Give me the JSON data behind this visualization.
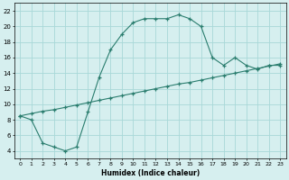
{
  "line1_x": [
    0,
    1,
    2,
    3,
    4,
    5,
    6,
    7,
    8,
    9,
    10,
    11,
    12,
    13,
    14,
    15,
    16,
    17,
    18,
    19,
    20,
    21,
    22,
    23
  ],
  "line1_y": [
    8.5,
    8.0,
    5.0,
    4.5,
    4.0,
    4.5,
    9.0,
    13.5,
    17.0,
    19.0,
    20.5,
    21.0,
    21.0,
    21.0,
    21.5,
    21.0,
    20.0,
    16.0,
    15.0,
    16.0,
    15.0,
    14.5,
    15.0,
    15.0
  ],
  "line2_x": [
    0,
    1,
    2,
    3,
    4,
    5,
    6,
    7,
    8,
    9,
    10,
    11,
    12,
    13,
    14,
    15,
    16,
    17,
    18,
    19,
    20,
    21,
    22,
    23
  ],
  "line2_y": [
    8.5,
    8.8,
    9.1,
    9.3,
    9.6,
    9.9,
    10.2,
    10.5,
    10.8,
    11.1,
    11.4,
    11.7,
    12.0,
    12.3,
    12.6,
    12.8,
    13.1,
    13.4,
    13.7,
    14.0,
    14.3,
    14.6,
    14.9,
    15.2
  ],
  "line_color": "#2a7d6e",
  "bg_color": "#d6efef",
  "grid_color": "#a8d8d8",
  "xlabel": "Humidex (Indice chaleur)",
  "xlim": [
    -0.5,
    23.5
  ],
  "ylim": [
    3,
    23
  ],
  "xtick_values": [
    0,
    1,
    2,
    3,
    4,
    5,
    6,
    7,
    8,
    9,
    10,
    11,
    12,
    13,
    14,
    15,
    16,
    17,
    18,
    19,
    20,
    21,
    22,
    23
  ],
  "xtick_labels": [
    "0",
    "1",
    "2",
    "3",
    "4",
    "5",
    "6",
    "7",
    "8",
    "9",
    "10",
    "11",
    "12",
    "13",
    "14",
    "15",
    "16",
    "17",
    "18",
    "19",
    "20",
    "21",
    "22",
    "23"
  ],
  "ytick_values": [
    4,
    6,
    8,
    10,
    12,
    14,
    16,
    18,
    20,
    22
  ],
  "marker": "+"
}
